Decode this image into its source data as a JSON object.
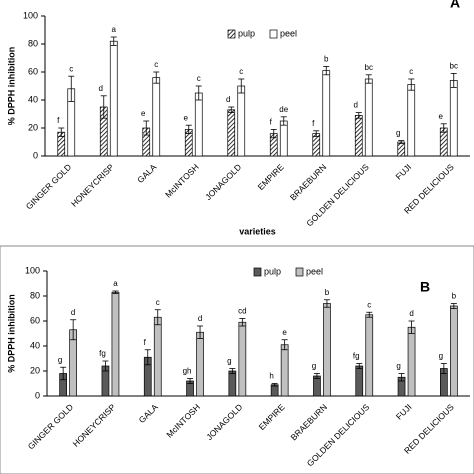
{
  "chart_data": [
    {
      "type": "bar",
      "panel_label": "A",
      "ylabel": "% DPPH inhibition",
      "xlabel": "varieties",
      "categories": [
        "GINGER GOLD",
        "HONEYCRISP",
        "GALA",
        "McINTOSH",
        "JONAGOLD",
        "EMPIRE",
        "BRAEBURN",
        "GOLDEN DELICIOUS",
        "FUJI",
        "RED DELICIOUS"
      ],
      "series": [
        {
          "name": "pulp",
          "color": "#ffffff",
          "hatch": true,
          "values": [
            17,
            35,
            20,
            19,
            33,
            16,
            16,
            29,
            10,
            20
          ],
          "errors": [
            3,
            8,
            5,
            3,
            2,
            3,
            2,
            2,
            1,
            3
          ],
          "letters": [
            "f",
            "d",
            "e",
            "e",
            "d",
            "f",
            "f",
            "d",
            "g",
            "e"
          ]
        },
        {
          "name": "peel",
          "color": "#ffffff",
          "hatch": false,
          "values": [
            48,
            82,
            56,
            45,
            50,
            25,
            61,
            55,
            51,
            54
          ],
          "errors": [
            9,
            3,
            4,
            5,
            5,
            3,
            3,
            3,
            4,
            5
          ],
          "letters": [
            "c",
            "a",
            "c",
            "c",
            "c",
            "de",
            "b",
            "bc",
            "c",
            "bc"
          ]
        }
      ],
      "ylim": [
        0,
        100
      ],
      "yticks": [
        0,
        20,
        40,
        60,
        80,
        100
      ]
    },
    {
      "type": "bar",
      "panel_label": "B",
      "ylabel": "% DPPH inhibition",
      "categories": [
        "GINGER GOLD",
        "HONEYCRISP",
        "GALA",
        "McINTOSH",
        "JONAGOLD",
        "EMPIRE",
        "BRAEBURN",
        "GOLDEN DELICIOUS",
        "FUJI",
        "RED DELICIOUS"
      ],
      "series": [
        {
          "name": "pulp",
          "color": "#5a5a5a",
          "hatch": false,
          "values": [
            18,
            24,
            31,
            12,
            20,
            9,
            16,
            24,
            15,
            22
          ],
          "errors": [
            5,
            4,
            6,
            2,
            2,
            1,
            2,
            2,
            3,
            4
          ],
          "letters": [
            "g",
            "fg",
            "f",
            "gh",
            "g",
            "h",
            "g",
            "fg",
            "g",
            "g"
          ]
        },
        {
          "name": "peel",
          "color": "#c0c0c0",
          "hatch": false,
          "values": [
            53,
            83,
            63,
            51,
            59,
            41,
            74,
            65,
            55,
            72
          ],
          "errors": [
            8,
            1,
            6,
            5,
            3,
            4,
            3,
            2,
            5,
            2
          ],
          "letters": [
            "d",
            "a",
            "c",
            "d",
            "cd",
            "e",
            "b",
            "c",
            "d",
            "b"
          ]
        }
      ],
      "ylim": [
        0,
        100
      ],
      "yticks": [
        0,
        20,
        40,
        60,
        80,
        100
      ]
    }
  ]
}
